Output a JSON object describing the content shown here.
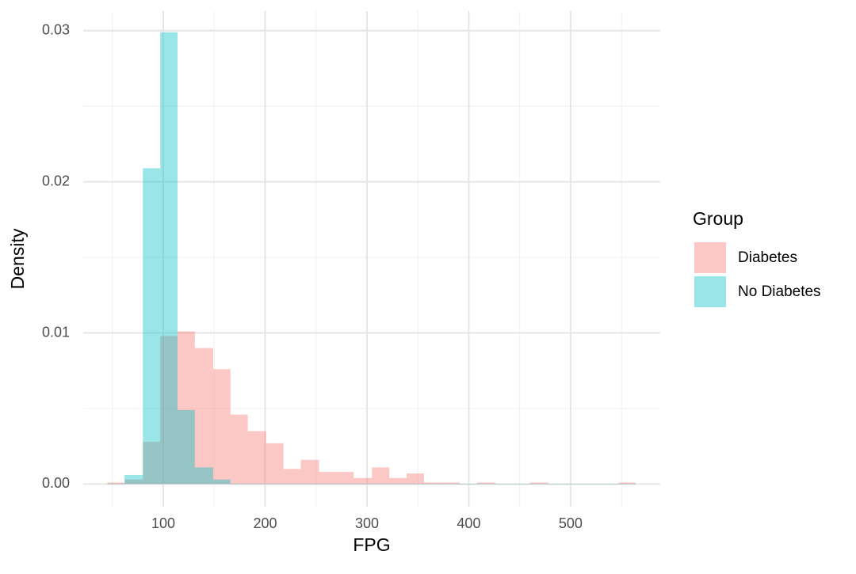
{
  "chart_data": {
    "type": "histogram",
    "x_label": "FPG",
    "y_label": "Density",
    "legend_title": "Group",
    "bins": [
      45,
      62,
      80,
      97,
      114,
      131,
      149,
      166,
      183,
      201,
      218,
      235,
      253,
      270,
      287,
      305,
      322,
      339,
      356,
      374,
      391,
      408,
      426,
      443,
      460,
      478,
      495,
      512,
      529,
      547,
      564
    ],
    "series": [
      {
        "name": "Diabetes",
        "color": "#F8766D",
        "values": [
          0.0001,
          0.0003,
          0.0028,
          0.0098,
          0.0101,
          0.009,
          0.0076,
          0.0046,
          0.0035,
          0.0027,
          0.001,
          0.0016,
          0.0008,
          0.0008,
          0.0004,
          0.0011,
          0.0004,
          0.0007,
          0.0001,
          0.0001,
          0,
          0.0001,
          0,
          0,
          0.0001,
          0,
          0,
          0,
          0,
          0.0001
        ]
      },
      {
        "name": "No Diabetes",
        "color": "#00BFC4",
        "values": [
          0,
          0.0006,
          0.0209,
          0.0299,
          0.0049,
          0.0011,
          0.0003,
          0,
          0,
          0,
          0,
          0,
          0,
          0,
          0,
          0,
          0,
          0,
          0,
          0,
          0,
          0,
          0,
          0,
          0,
          0,
          0,
          0,
          0,
          0
        ]
      }
    ],
    "opacity": 0.4,
    "xlim": [
      21.4,
      588
    ],
    "ylim": [
      -0.0015,
      0.0313
    ],
    "xticks": [
      100,
      200,
      300,
      400,
      500
    ],
    "yticks": [
      {
        "value": 0,
        "label": "0.00"
      },
      0.01,
      0.02,
      0.03
    ],
    "x_minor_ticks": [
      50,
      150,
      250,
      350,
      450,
      550
    ],
    "y_minor_ticks": [
      0.005,
      0.015,
      0.025
    ],
    "grid": true,
    "legend": "right"
  }
}
